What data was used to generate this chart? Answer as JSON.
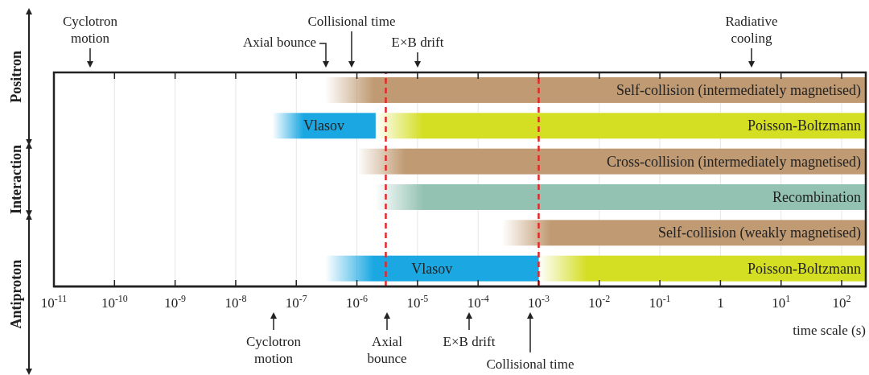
{
  "chart_data": {
    "type": "bar",
    "orientation": "horizontal",
    "log": "x",
    "grid": "x",
    "categories": [
      null,
      null,
      null,
      null,
      null,
      null
    ],
    "xlabel": "time scale (s)",
    "xlim": [
      1e-11,
      250
    ],
    "xticks": [
      {
        "value": 1e-11,
        "label": "10$^{-11}$"
      },
      {
        "value": 1e-10,
        "label": "10$^{-10}$"
      },
      {
        "value": 1e-09,
        "label": "10$^{-9}$"
      },
      {
        "value": 1e-08,
        "label": "10$^{-8}$"
      },
      {
        "value": 1e-07,
        "label": "10$^{-7}$"
      },
      {
        "value": 1e-06,
        "label": "10$^{-6}$"
      },
      {
        "value": 1e-05,
        "label": "10$^{-5}$"
      },
      {
        "value": 0.0001,
        "label": "10$^{-4}$"
      },
      {
        "value": 0.001,
        "label": "10$^{-3}$"
      },
      {
        "value": 0.01,
        "label": "10$^{-2}$"
      },
      {
        "value": 0.1,
        "label": "10$^{-1}$"
      },
      1,
      {
        "value": 10,
        "label": "10$^{1}$"
      },
      {
        "value": 100,
        "label": "10$^{2}$"
      }
    ],
    "series": [
      {
        "colors": [
          "#c09a72",
          "#1ba8e2",
          "#c09a72",
          "#93c2b2",
          "#c09a72",
          "#1ba8e2"
        ],
        "base": [
          3e-07,
          4e-08,
          1e-06,
          2e-06,
          0.00025,
          3e-07
        ],
        "values": [
          250,
          2e-06,
          250,
          250,
          250,
          0.001
        ],
        "value_labels": [
          "Self-collision (intermediately magnetised)",
          "Vlasov",
          "Cross-collision (intermediately magnetised)",
          "Recombination",
          "Self-collision (weakly magnetised)",
          "Vlasov"
        ]
      },
      {
        "colors": [
          null,
          "#d4de22",
          null,
          null,
          null,
          "#d4de22"
        ],
        "base": [
          null,
          2e-06,
          null,
          null,
          null,
          0.001
        ],
        "values": [
          null,
          250,
          null,
          null,
          null,
          250
        ],
        "value_labels": [
          null,
          "Poisson-Boltzmann",
          null,
          null,
          null,
          "Poisson-Boltzmann"
        ]
      }
    ],
    "ref_lines": [
      {
        "axis": "x",
        "value": 3e-06,
        "color": "#e8262a",
        "line_style": "dashed"
      },
      {
        "axis": "x",
        "value": 0.001,
        "color": "#e8262a",
        "line_style": "dashed"
      }
    ],
    "annotations": [
      "Positron",
      "Interaction",
      "Antiproton",
      "Cyclotron\nmotion",
      "Axial bounce",
      "Collisional time",
      "E×B drift",
      "Radiative\ncooling",
      "Cyclotron\nmotion",
      "Axial\nbounce",
      "E×B drift",
      "Collisional time"
    ]
  }
}
